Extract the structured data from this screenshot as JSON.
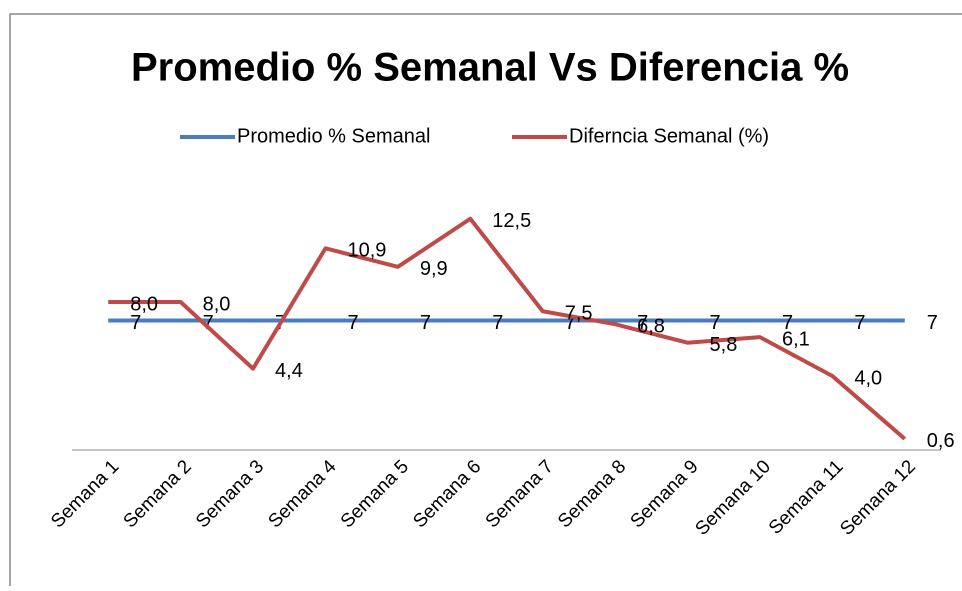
{
  "chart_data": {
    "type": "line",
    "title": "Promedio % Semanal Vs Diferencia %",
    "categories": [
      "Semana 1",
      "Semana 2",
      "Semana 3",
      "Semana 4",
      "Semana 5",
      "Semana 6",
      "Semana 7",
      "Semana 8",
      "Semana 9",
      "Semana 10",
      "Semana 11",
      "Semana 12"
    ],
    "series": [
      {
        "name": "Promedio % Semanal",
        "color": "#4a7ebb",
        "values": [
          7,
          7,
          7,
          7,
          7,
          7,
          7,
          7,
          7,
          7,
          7,
          7
        ]
      },
      {
        "name": "Diferncia Semanal (%)",
        "color": "#be4b48",
        "values": [
          8.0,
          8.0,
          4.4,
          10.9,
          9.9,
          12.5,
          7.5,
          6.8,
          5.8,
          6.1,
          4.0,
          0.6
        ],
        "value_labels": [
          "8,0",
          "8,0",
          "4,4",
          "10,9",
          "9,9",
          "12,5",
          "7,5",
          "6,8",
          "5,8",
          "6,1",
          "4,0",
          "0,6"
        ]
      }
    ],
    "ylim": [
      0,
      14
    ],
    "legend": "top"
  }
}
